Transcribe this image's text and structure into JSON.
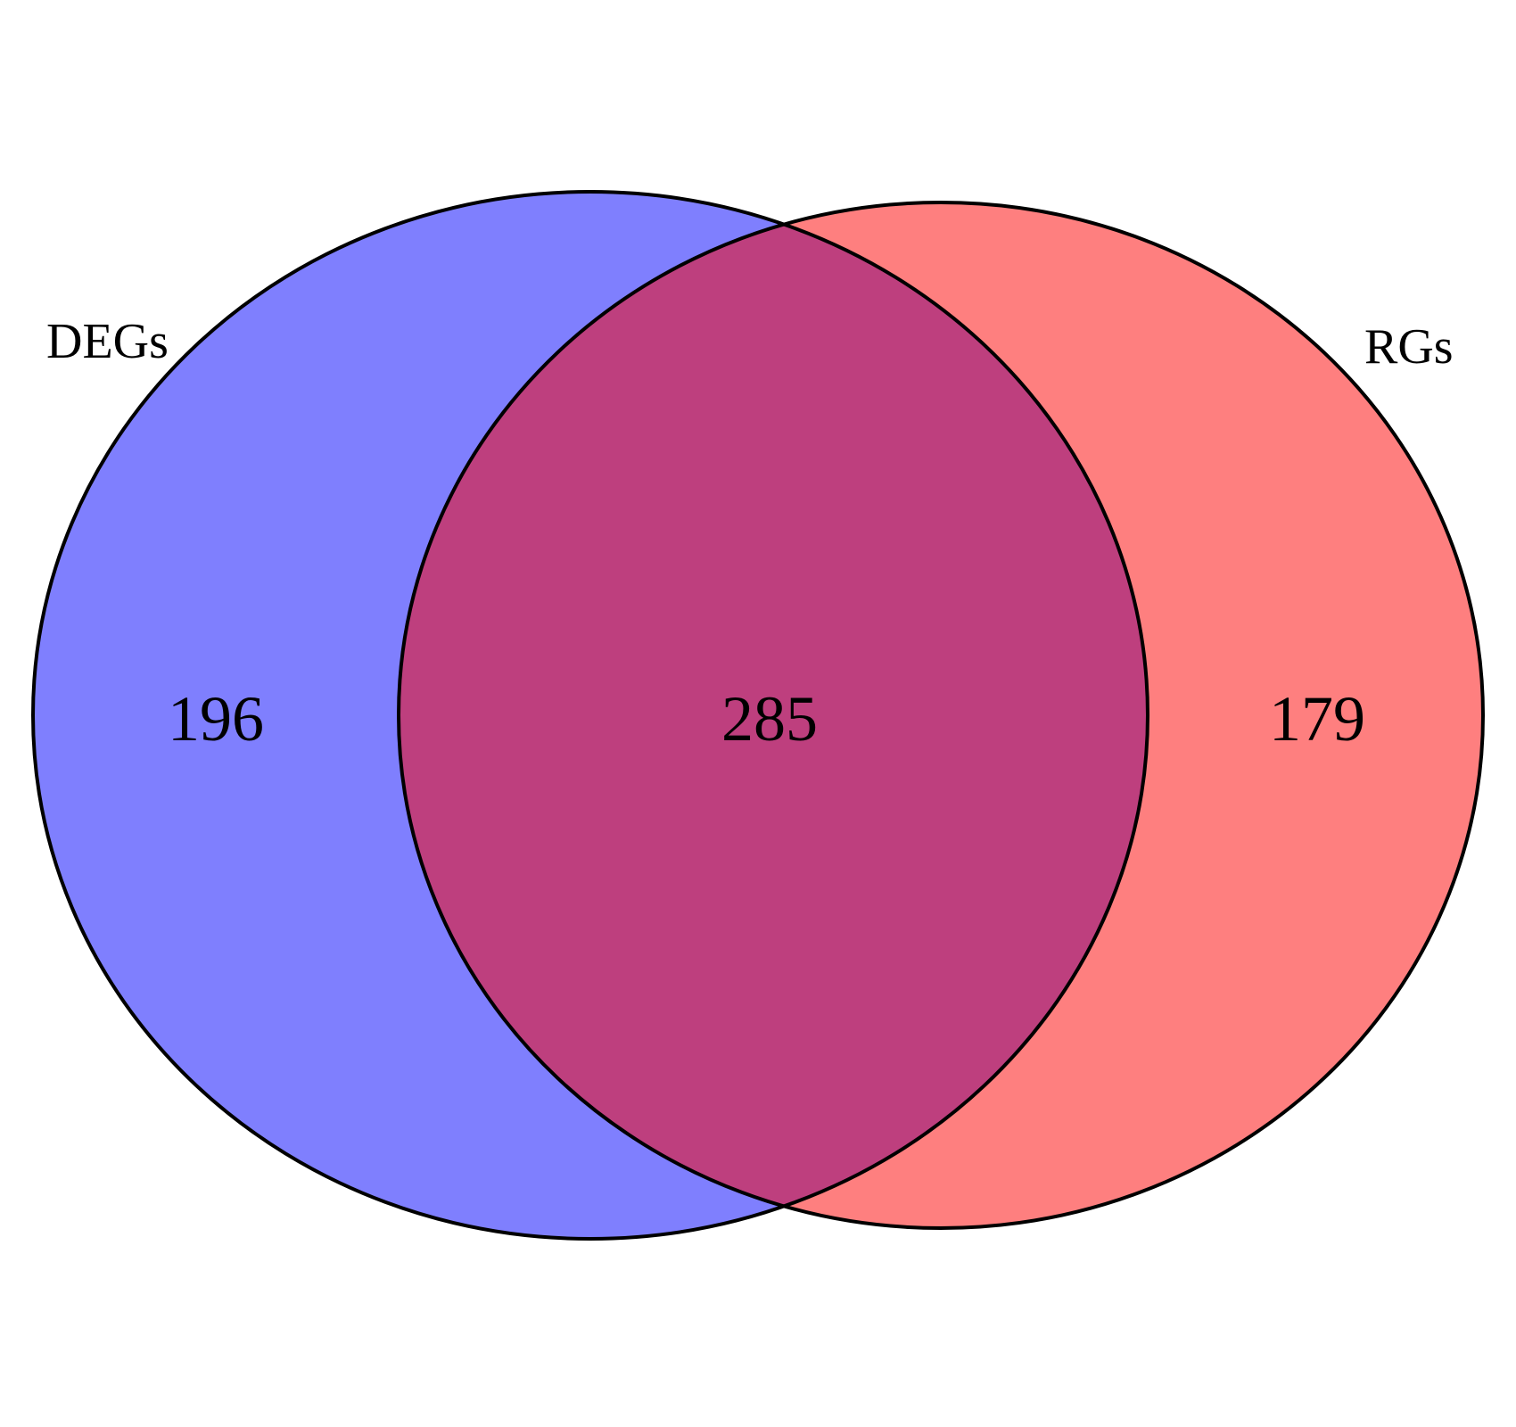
{
  "chart_data": {
    "type": "venn",
    "sets": [
      {
        "name": "DEGs",
        "color": "#7f7ffe",
        "only_count": "196"
      },
      {
        "name": "RGs",
        "color": "#fe7f7f",
        "only_count": "179"
      }
    ],
    "intersection": {
      "count": "285",
      "color": "#be3f7e"
    },
    "outline_color": "#000000"
  }
}
